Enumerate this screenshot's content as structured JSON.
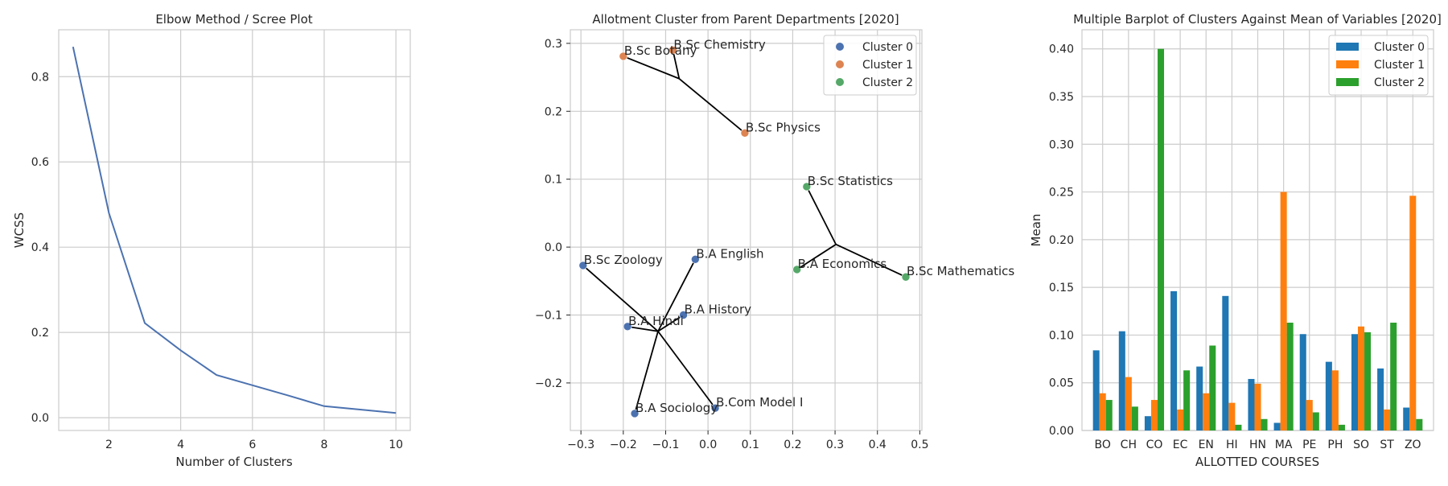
{
  "chart_data": [
    {
      "type": "line",
      "title": "Elbow Method / Scree Plot",
      "xlabel": "Number of Clusters",
      "ylabel": "WCSS",
      "xlim": [
        0.6,
        10.4
      ],
      "ylim": [
        -0.03,
        0.91
      ],
      "xticks": [
        2,
        4,
        6,
        8,
        10
      ],
      "xtick_labels": [
        "2",
        "4",
        "6",
        "8",
        "10"
      ],
      "yticks": [
        0,
        0.2,
        0.4,
        0.6,
        0.8
      ],
      "ytick_labels": [
        "0.0",
        "0.2",
        "0.4",
        "0.6",
        "0.8"
      ],
      "grid": true,
      "color": "#4c72b0",
      "x": [
        1,
        2,
        3,
        4,
        5,
        6,
        7,
        8,
        9,
        10
      ],
      "y": [
        0.87,
        0.48,
        0.222,
        0.158,
        0.1,
        0.076,
        0.052,
        0.027,
        0.019,
        0.011
      ]
    },
    {
      "type": "scatter",
      "title": "Allotment Cluster from Parent Departments [2020]",
      "xlabel": "",
      "ylabel": "",
      "xlim": [
        -0.325,
        0.505
      ],
      "ylim": [
        -0.27,
        0.32
      ],
      "xticks": [
        -0.3,
        -0.2,
        -0.1,
        0.0,
        0.1,
        0.2,
        0.3,
        0.4,
        0.5
      ],
      "xtick_labels": [
        "−0.3",
        "−0.2",
        "−0.1",
        "0.0",
        "0.1",
        "0.2",
        "0.3",
        "0.4",
        "0.5"
      ],
      "yticks": [
        -0.2,
        -0.1,
        0.0,
        0.1,
        0.2,
        0.3
      ],
      "ytick_labels": [
        "−0.2",
        "−0.1",
        "0.0",
        "0.1",
        "0.2",
        "0.3"
      ],
      "grid": true,
      "legend_position": "top-right",
      "series": [
        {
          "name": "Cluster 0",
          "color": "#4c72b0",
          "hub": [
            -0.118,
            -0.124
          ],
          "points": [
            {
              "label": "B.Sc Zoology",
              "x": -0.295,
              "y": -0.027
            },
            {
              "label": "B.A English",
              "x": -0.03,
              "y": -0.018
            },
            {
              "label": "B.A History",
              "x": -0.058,
              "y": -0.1
            },
            {
              "label": "B.A Hindi",
              "x": -0.19,
              "y": -0.117
            },
            {
              "label": "B.A Sociology",
              "x": -0.173,
              "y": -0.245
            },
            {
              "label": "B.Com Model I",
              "x": 0.017,
              "y": -0.237
            }
          ]
        },
        {
          "name": "Cluster 1",
          "color": "#dd8452",
          "hub": [
            -0.068,
            0.248
          ],
          "points": [
            {
              "label": "B.Sc Botany",
              "x": -0.2,
              "y": 0.281
            },
            {
              "label": "B.Sc Chemistry",
              "x": -0.083,
              "y": 0.29
            },
            {
              "label": "B.Sc Physics",
              "x": 0.087,
              "y": 0.168
            }
          ]
        },
        {
          "name": "Cluster 2",
          "color": "#55a868",
          "hub": [
            0.302,
            0.004
          ],
          "points": [
            {
              "label": "B.Sc Statistics",
              "x": 0.233,
              "y": 0.089
            },
            {
              "label": "B.A Economics",
              "x": 0.21,
              "y": -0.033
            },
            {
              "label": "B.Sc Mathematics",
              "x": 0.467,
              "y": -0.044
            }
          ]
        }
      ]
    },
    {
      "type": "bar",
      "title": "Multiple Barplot of Clusters Against Mean of Variables [2020]",
      "xlabel": "ALLOTTED COURSES",
      "ylabel": "Mean",
      "ylim": [
        0,
        0.42
      ],
      "yticks": [
        0,
        0.05,
        0.1,
        0.15,
        0.2,
        0.25,
        0.3,
        0.35,
        0.4
      ],
      "ytick_labels": [
        "0.00",
        "0.05",
        "0.10",
        "0.15",
        "0.20",
        "0.25",
        "0.30",
        "0.35",
        "0.40"
      ],
      "grid": true,
      "legend_position": "top-right",
      "categories": [
        "BO",
        "CH",
        "CO",
        "EC",
        "EN",
        "HI",
        "HN",
        "MA",
        "PE",
        "PH",
        "SO",
        "ST",
        "ZO"
      ],
      "series": [
        {
          "name": "Cluster 0",
          "color": "#1f77b4",
          "values": [
            0.084,
            0.104,
            0.015,
            0.146,
            0.067,
            0.141,
            0.054,
            0.008,
            0.101,
            0.072,
            0.101,
            0.065,
            0.024
          ]
        },
        {
          "name": "Cluster 1",
          "color": "#ff7f0e",
          "values": [
            0.039,
            0.056,
            0.032,
            0.022,
            0.039,
            0.029,
            0.049,
            0.25,
            0.032,
            0.063,
            0.109,
            0.022,
            0.246
          ]
        },
        {
          "name": "Cluster 2",
          "color": "#2ca02c",
          "values": [
            0.032,
            0.025,
            0.4,
            0.063,
            0.089,
            0.006,
            0.012,
            0.113,
            0.019,
            0.006,
            0.103,
            0.113,
            0.012
          ]
        }
      ]
    }
  ]
}
